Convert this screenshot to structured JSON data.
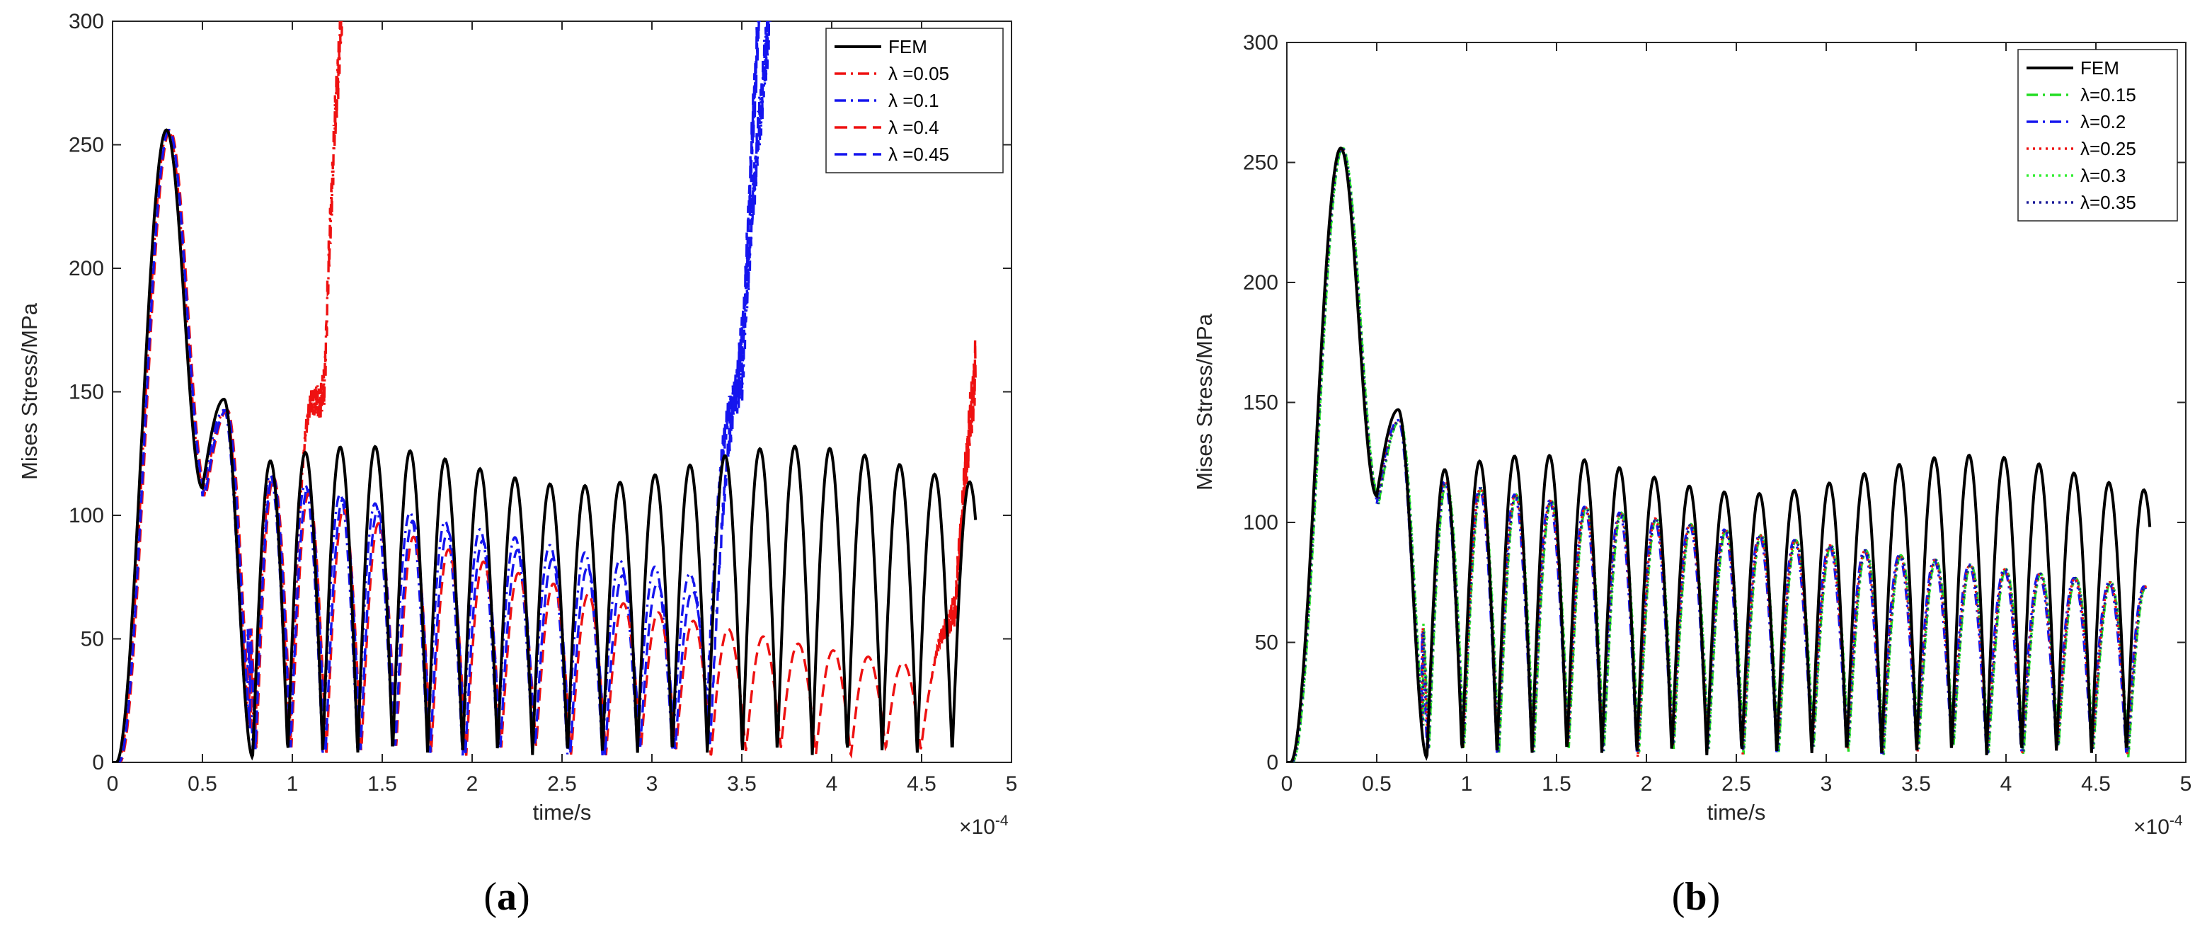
{
  "chart_data": [
    {
      "type": "line",
      "subfigure": "(a)",
      "sub_open": "(",
      "sub_letter": "a",
      "sub_close": ")",
      "xlabel": "time/s",
      "ylabel": "Mises Stress/MPa",
      "x_exponent_prefix": "×10",
      "x_exponent_power": "-4",
      "xlim": [
        0,
        5
      ],
      "ylim": [
        0,
        300
      ],
      "xticks": [
        "0",
        "0.5",
        "1",
        "1.5",
        "2",
        "2.5",
        "3",
        "3.5",
        "4",
        "4.5",
        "5"
      ],
      "yticks": [
        "0",
        "50",
        "100",
        "150",
        "200",
        "250",
        "300"
      ],
      "legend_position": "top-right",
      "series": [
        {
          "name": "FEM",
          "color": "#000000",
          "dash": "solid",
          "kind": "fem"
        },
        {
          "name": "λ =0.05",
          "color": "#ee1111",
          "dash": "dashdot",
          "kind": "diverge",
          "amp_decay": 0.25,
          "shift": 0.01,
          "diverge_start": 1.0,
          "diverge_end": 1.28,
          "end": 1.28
        },
        {
          "name": "λ =0.1",
          "color": "#1515ee",
          "dash": "dashdot",
          "kind": "diverge",
          "amp_decay": 0.18,
          "shift": 0.0,
          "diverge_start": 3.22,
          "diverge_end": 3.66,
          "end": 3.66
        },
        {
          "name": "λ =0.4",
          "color": "#ee1111",
          "dash": "dashed",
          "kind": "diverge",
          "amp_decay": 0.3,
          "shift": 0.02,
          "diverge_start": 4.55,
          "diverge_end": 4.8,
          "end": 4.8,
          "final_value": 160
        },
        {
          "name": "λ =0.45",
          "color": "#1515ee",
          "dash": "dashed",
          "kind": "diverge",
          "amp_decay": 0.22,
          "shift": 0.015,
          "diverge_start": 3.3,
          "diverge_end": 3.6,
          "end": 3.6
        }
      ]
    },
    {
      "type": "line",
      "subfigure": "(b)",
      "sub_open": "(",
      "sub_letter": "b",
      "sub_close": ")",
      "xlabel": "time/s",
      "ylabel": "Mises Stress/MPa",
      "x_exponent_prefix": "×10",
      "x_exponent_power": "-4",
      "xlim": [
        0,
        5
      ],
      "ylim": [
        0,
        300
      ],
      "xticks": [
        "0",
        "0.5",
        "1",
        "1.5",
        "2",
        "2.5",
        "3",
        "3.5",
        "4",
        "4.5",
        "5"
      ],
      "yticks": [
        "0",
        "50",
        "100",
        "150",
        "200",
        "250",
        "300"
      ],
      "legend_position": "top-right",
      "series": [
        {
          "name": "FEM",
          "color": "#000000",
          "dash": "solid",
          "kind": "fem"
        },
        {
          "name": "λ=0.15",
          "color": "#22dd22",
          "dash": "dashdot",
          "kind": "decay",
          "amp_decay": 0.12,
          "shift": 0.01,
          "end": 4.78
        },
        {
          "name": "λ=0.2",
          "color": "#1515ee",
          "dash": "dashdot",
          "kind": "decay",
          "amp_decay": 0.12,
          "shift": 0.0,
          "end": 4.78
        },
        {
          "name": "λ=0.25",
          "color": "#ee1111",
          "dash": "dotted",
          "kind": "decay",
          "amp_decay": 0.12,
          "shift": 0.005,
          "end": 4.78
        },
        {
          "name": "λ=0.3",
          "color": "#33ee33",
          "dash": "dotted",
          "kind": "decay",
          "amp_decay": 0.12,
          "shift": 0.012,
          "end": 4.78
        },
        {
          "name": "λ=0.35",
          "color": "#1a1a99",
          "dash": "dotted",
          "kind": "decay",
          "amp_decay": 0.12,
          "shift": 0.008,
          "end": 4.78
        }
      ]
    }
  ]
}
